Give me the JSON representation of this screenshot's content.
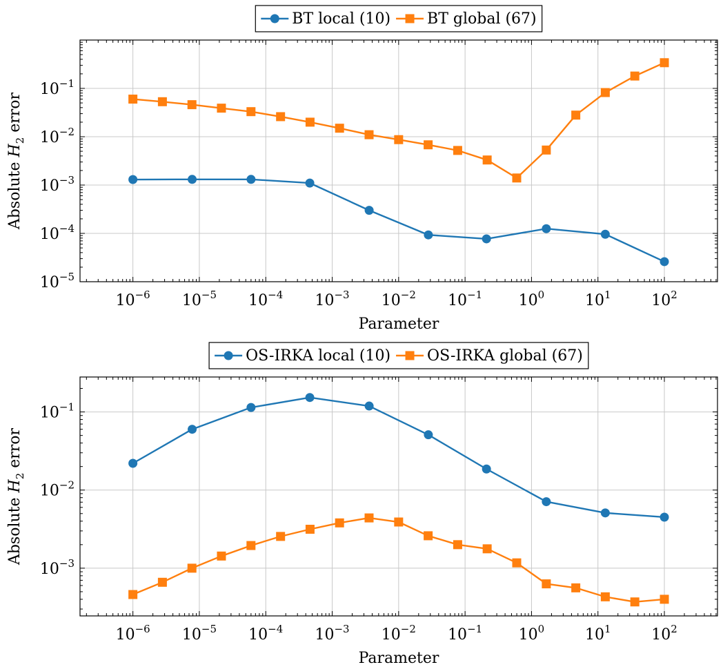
{
  "chart_data": [
    {
      "type": "line",
      "xscale": "log",
      "yscale": "log",
      "xlim": [
        1.6e-07,
        630
      ],
      "ylim": [
        1e-05,
        1.0
      ],
      "xticks": [
        1e-06,
        1e-05,
        0.0001,
        0.001,
        0.01,
        0.1,
        1,
        10,
        100
      ],
      "yticks": [
        1e-05,
        0.0001,
        0.001,
        0.01,
        0.1
      ],
      "xtick_labels": [
        {
          "base": "10",
          "exp": "−6"
        },
        {
          "base": "10",
          "exp": "−5"
        },
        {
          "base": "10",
          "exp": "−4"
        },
        {
          "base": "10",
          "exp": "−3"
        },
        {
          "base": "10",
          "exp": "−2"
        },
        {
          "base": "10",
          "exp": "−1"
        },
        {
          "base": "10",
          "exp": "0"
        },
        {
          "base": "10",
          "exp": "1"
        },
        {
          "base": "10",
          "exp": "2"
        }
      ],
      "ytick_labels": [
        {
          "base": "10",
          "exp": "−5"
        },
        {
          "base": "10",
          "exp": "−4"
        },
        {
          "base": "10",
          "exp": "−3"
        },
        {
          "base": "10",
          "exp": "−2"
        },
        {
          "base": "10",
          "exp": "−1"
        }
      ],
      "xlabel": "Parameter",
      "ylabel_prefix": "Absolute ",
      "ylabel_symbol": "H",
      "ylabel_sub": "2",
      "ylabel_suffix": " error",
      "grid": true,
      "legend_position": "top-center-outside",
      "series": [
        {
          "name": "BT local (10)",
          "color": "#1f77b4",
          "marker": "circle",
          "x": [
            1e-06,
            7.8e-06,
            6e-05,
            0.00046,
            0.0036,
            0.028,
            0.21,
            1.67,
            12.9,
            100
          ],
          "y": [
            0.0013,
            0.00131,
            0.00131,
            0.0011,
            0.0003,
            9.3e-05,
            7.7e-05,
            0.000125,
            9.6e-05,
            2.6e-05
          ]
        },
        {
          "name": "BT global (67)",
          "color": "#ff7f0e",
          "marker": "square",
          "x": [
            1e-06,
            2.78e-06,
            7.74e-06,
            2.15e-05,
            5.99e-05,
            0.000167,
            0.000464,
            0.00129,
            0.00359,
            0.01,
            0.0278,
            0.0774,
            0.215,
            0.599,
            1.67,
            4.64,
            12.9,
            35.9,
            100
          ],
          "y": [
            0.06,
            0.053,
            0.046,
            0.039,
            0.033,
            0.026,
            0.02,
            0.015,
            0.011,
            0.0087,
            0.0068,
            0.0052,
            0.0033,
            0.0014,
            0.0053,
            0.028,
            0.082,
            0.18,
            0.34
          ]
        }
      ]
    },
    {
      "type": "line",
      "xscale": "log",
      "yscale": "log",
      "xlim": [
        1.6e-07,
        630
      ],
      "ylim": [
        0.000245,
        0.28
      ],
      "xticks": [
        1e-06,
        1e-05,
        0.0001,
        0.001,
        0.01,
        0.1,
        1,
        10,
        100
      ],
      "yticks": [
        0.001,
        0.01,
        0.1
      ],
      "xtick_labels": [
        {
          "base": "10",
          "exp": "−6"
        },
        {
          "base": "10",
          "exp": "−5"
        },
        {
          "base": "10",
          "exp": "−4"
        },
        {
          "base": "10",
          "exp": "−3"
        },
        {
          "base": "10",
          "exp": "−2"
        },
        {
          "base": "10",
          "exp": "−1"
        },
        {
          "base": "10",
          "exp": "0"
        },
        {
          "base": "10",
          "exp": "1"
        },
        {
          "base": "10",
          "exp": "2"
        }
      ],
      "ytick_labels": [
        {
          "base": "10",
          "exp": "−3"
        },
        {
          "base": "10",
          "exp": "−2"
        },
        {
          "base": "10",
          "exp": "−1"
        }
      ],
      "xlabel": "Parameter",
      "ylabel_prefix": "Absolute ",
      "ylabel_symbol": "H",
      "ylabel_sub": "2",
      "ylabel_suffix": " error",
      "grid": true,
      "legend_position": "top-center-outside",
      "series": [
        {
          "name": "OS-IRKA local (10)",
          "color": "#1f77b4",
          "marker": "circle",
          "x": [
            1e-06,
            7.8e-06,
            6e-05,
            0.00046,
            0.0036,
            0.028,
            0.21,
            1.67,
            12.9,
            100
          ],
          "y": [
            0.022,
            0.06,
            0.114,
            0.153,
            0.119,
            0.051,
            0.0186,
            0.0071,
            0.0051,
            0.0045
          ]
        },
        {
          "name": "OS-IRKA global (67)",
          "color": "#ff7f0e",
          "marker": "square",
          "x": [
            1e-06,
            2.78e-06,
            7.74e-06,
            2.15e-05,
            5.99e-05,
            0.000167,
            0.000464,
            0.00129,
            0.00359,
            0.01,
            0.0278,
            0.0774,
            0.215,
            0.599,
            1.67,
            4.64,
            12.9,
            35.9,
            100
          ],
          "y": [
            0.00046,
            0.00066,
            0.001,
            0.00143,
            0.00195,
            0.00255,
            0.00315,
            0.0038,
            0.0044,
            0.0039,
            0.0026,
            0.002,
            0.00177,
            0.00117,
            0.00063,
            0.00056,
            0.00043,
            0.00037,
            0.0004
          ]
        }
      ]
    }
  ]
}
